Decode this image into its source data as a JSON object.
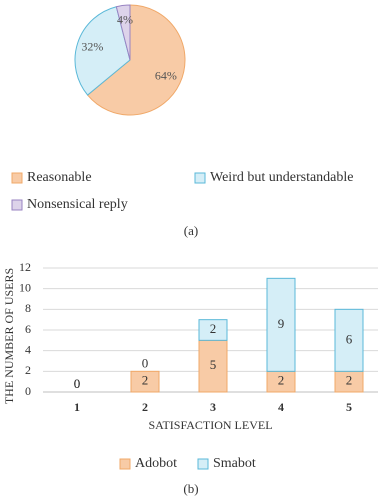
{
  "chart_data": [
    {
      "type": "pie",
      "caption": "(a)",
      "categories": [
        "Reasonable",
        "Weird but understandable",
        "Nonsensical reply"
      ],
      "values": [
        64,
        32,
        4
      ],
      "value_labels": [
        "64%",
        "32%",
        "4%"
      ],
      "colors": [
        "#f8cba6",
        "#d5eef7",
        "#ddd3ea"
      ],
      "edgecolors": [
        "#f0a868",
        "#5ab8d8",
        "#9883c2"
      ]
    },
    {
      "type": "bar",
      "stacked": true,
      "caption": "(b)",
      "categories": [
        "1",
        "2",
        "3",
        "4",
        "5"
      ],
      "series": [
        {
          "name": "Adobot",
          "color": "#f8cba6",
          "edgecolor": "#f0a868",
          "values": [
            0,
            2,
            5,
            2,
            2
          ]
        },
        {
          "name": "Smabot",
          "color": "#d5eef7",
          "edgecolor": "#5ab8d8",
          "values": [
            0,
            0,
            2,
            9,
            6
          ]
        }
      ],
      "xlabel": "SATISFACTION LEVEL",
      "ylabel": "THE NUMBER OF USERS",
      "ylim": [
        0,
        12
      ],
      "yticks": [
        0,
        2,
        4,
        6,
        8,
        10,
        12
      ],
      "grid": true
    }
  ]
}
